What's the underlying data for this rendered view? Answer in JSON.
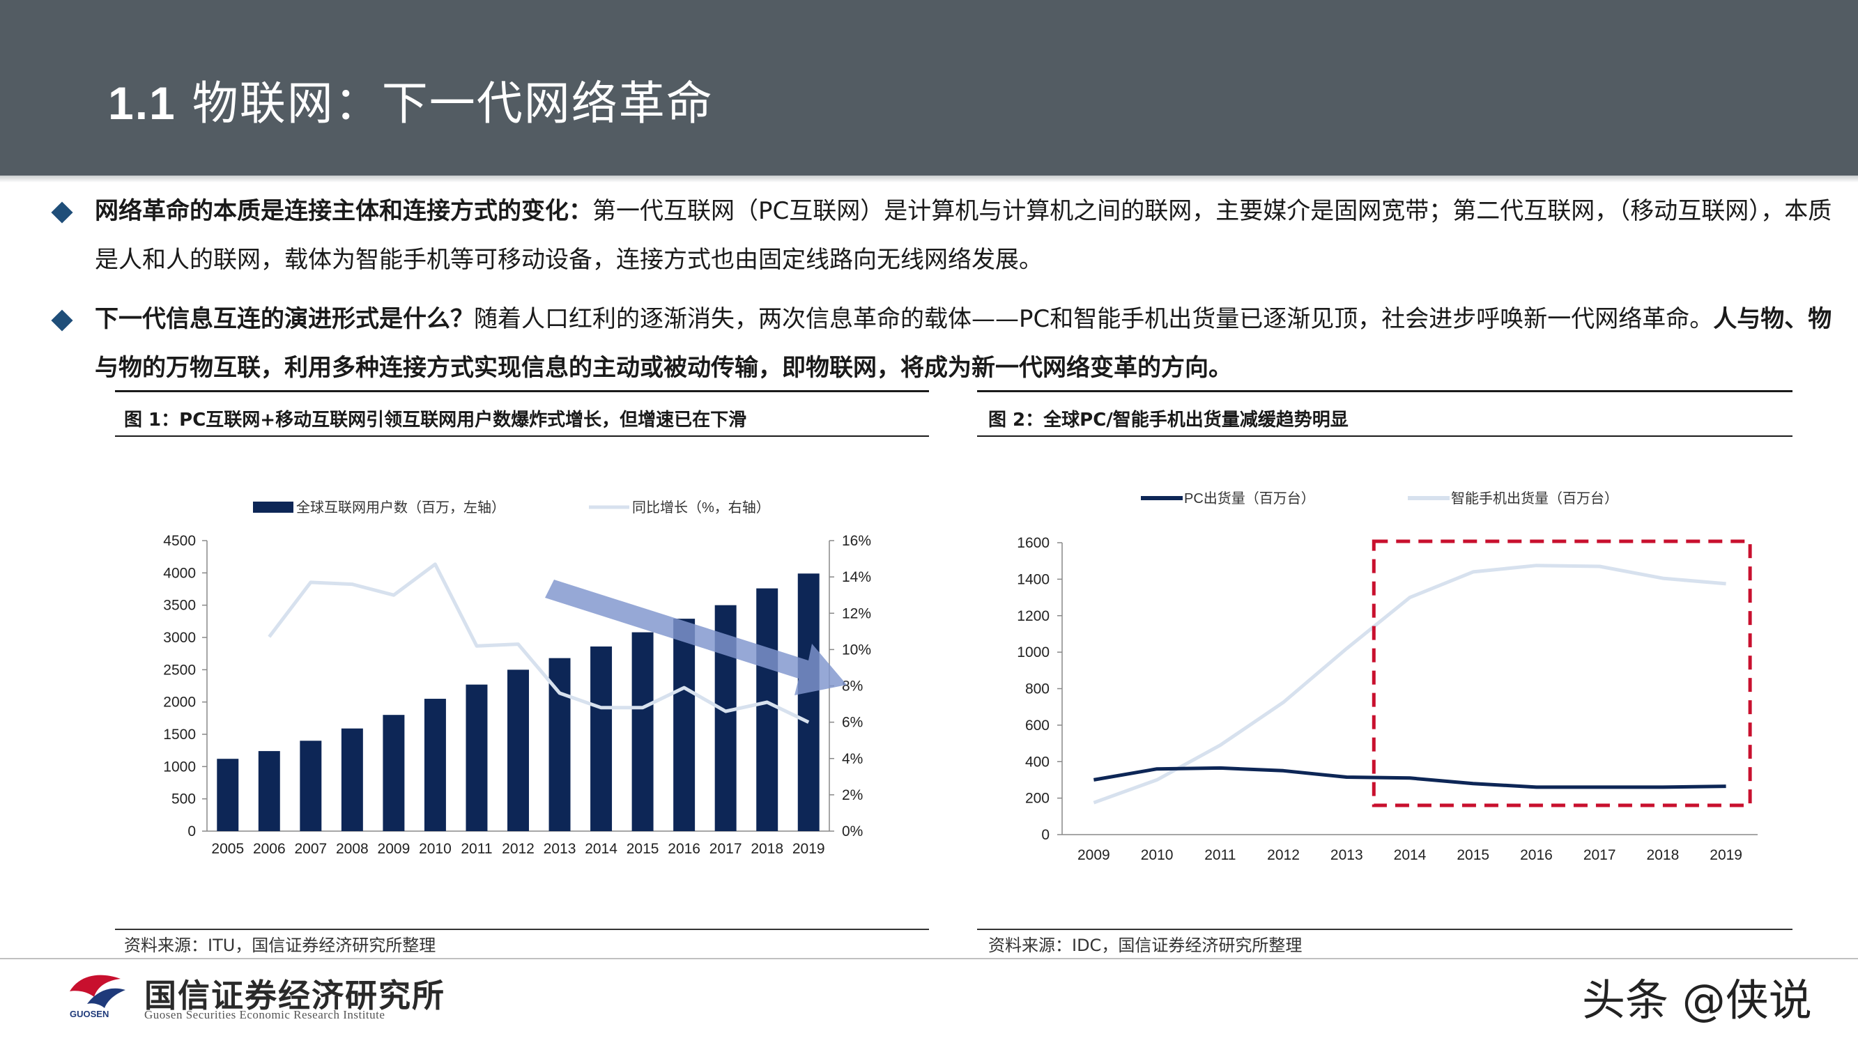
{
  "header": {
    "title_num": "1.1",
    "title_text": "物联网：下一代网络革命"
  },
  "bullets": [
    {
      "bold": "网络革命的本质是连接主体和连接方式的变化：",
      "normal": "第一代互联网（PC互联网）是计算机与计算机之间的联网，主要媒介是固网宽带；第二代互联网，（移动互联网），本质是人和人的联网，载体为智能手机等可移动设备，连接方式也由固定线路向无线网络发展。"
    },
    {
      "bold": "下一代信息互连的演进形式是什么？",
      "normal": "随着人口红利的逐渐消失，两次信息革命的载体——PC和智能手机出货量已逐渐见顶，社会进步呼唤新一代网络革命。",
      "bold2": "人与物、物与物的万物互联，利用多种连接方式实现信息的主动或被动传输，即物联网，将成为新一代网络变革的方向。"
    }
  ],
  "figure1": {
    "title": "图 1：PC互联网+移动互联网引领互联网用户数爆炸式增长，但增速已在下滑",
    "source": "资料来源：ITU，国信证券经济研究所整理"
  },
  "figure2": {
    "title": "图 2：全球PC/智能手机出货量减缓趋势明显",
    "source": "资料来源：IDC，国信证券经济研究所整理"
  },
  "chart_data": [
    {
      "type": "bar",
      "categories": [
        "2005",
        "2006",
        "2007",
        "2008",
        "2009",
        "2010",
        "2011",
        "2012",
        "2013",
        "2014",
        "2015",
        "2016",
        "2017",
        "2018",
        "2019"
      ],
      "series": [
        {
          "name": "全球互联网用户数（百万，左轴）",
          "type": "bar",
          "axis": "left",
          "values": [
            1120,
            1240,
            1400,
            1590,
            1800,
            2050,
            2270,
            2500,
            2680,
            2860,
            3080,
            3290,
            3500,
            3760,
            3990
          ],
          "color": "#0d2656"
        },
        {
          "name": "同比增长（%，右轴）",
          "type": "line",
          "axis": "right",
          "values": [
            null,
            10.7,
            13.7,
            13.6,
            13.0,
            14.7,
            10.2,
            10.3,
            7.6,
            6.8,
            6.8,
            7.9,
            6.6,
            7.1,
            6.0
          ],
          "color": "#d7e1ee"
        }
      ],
      "ylim_left": [
        0,
        4500
      ],
      "yticks_left": [
        "0",
        "500",
        "1000",
        "1500",
        "2000",
        "2500",
        "3000",
        "3500",
        "4000",
        "4500"
      ],
      "ylim_right": [
        0,
        16
      ],
      "yticks_right": [
        "0%",
        "2%",
        "4%",
        "6%",
        "8%",
        "10%",
        "12%",
        "14%",
        "16%"
      ],
      "annotation": "downward trend arrow",
      "legend_position": "top"
    },
    {
      "type": "line",
      "categories": [
        "2009",
        "2010",
        "2011",
        "2012",
        "2013",
        "2014",
        "2015",
        "2016",
        "2017",
        "2018",
        "2019"
      ],
      "series": [
        {
          "name": "PC出货量（百万台）",
          "values": [
            300,
            360,
            365,
            350,
            315,
            310,
            280,
            260,
            260,
            260,
            265
          ],
          "color": "#0d2656"
        },
        {
          "name": "智能手机出货量（百万台）",
          "values": [
            175,
            300,
            490,
            725,
            1020,
            1300,
            1440,
            1475,
            1470,
            1405,
            1375
          ],
          "color": "#d7e1ee"
        }
      ],
      "ylim": [
        0,
        1600
      ],
      "yticks": [
        "0",
        "200",
        "400",
        "600",
        "800",
        "1000",
        "1200",
        "1400",
        "1600"
      ],
      "highlight_box": {
        "from": "2014",
        "to": "2019",
        "style": "red dashed"
      },
      "legend_position": "top"
    }
  ]
}
